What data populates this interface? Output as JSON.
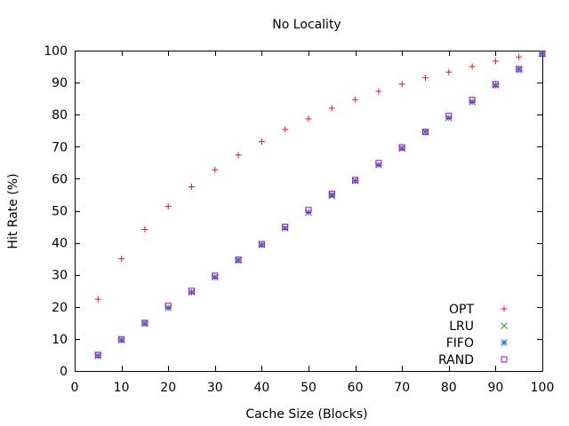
{
  "chart_data": {
    "type": "scatter",
    "title": "No Locality",
    "xlabel": "Cache Size (Blocks)",
    "ylabel": "Hit Rate (%)",
    "xlim": [
      0,
      100
    ],
    "ylim": [
      0,
      100
    ],
    "xticks": [
      0,
      10,
      20,
      30,
      40,
      50,
      60,
      70,
      80,
      90,
      100
    ],
    "yticks": [
      0,
      10,
      20,
      30,
      40,
      50,
      60,
      70,
      80,
      90,
      100
    ],
    "grid": false,
    "legend_position": "bottom-right",
    "x": [
      5,
      10,
      15,
      20,
      25,
      30,
      35,
      40,
      45,
      50,
      55,
      60,
      65,
      70,
      75,
      80,
      85,
      90,
      95,
      100
    ],
    "series": [
      {
        "name": "OPT",
        "marker": "plus",
        "color": "#e41a1c",
        "values": [
          22.4,
          35.0,
          44.2,
          51.4,
          57.5,
          62.8,
          67.4,
          71.6,
          75.4,
          78.7,
          82.0,
          84.7,
          87.3,
          89.5,
          91.5,
          93.3,
          95.0,
          96.7,
          98.0,
          99.0
        ]
      },
      {
        "name": "LRU",
        "marker": "cross",
        "color": "#2ca02c",
        "values": [
          4.8,
          9.7,
          14.9,
          19.7,
          24.6,
          29.3,
          34.6,
          39.4,
          44.6,
          49.5,
          54.6,
          59.4,
          64.3,
          69.5,
          74.6,
          79.0,
          84.0,
          89.2,
          94.2,
          99.0
        ]
      },
      {
        "name": "FIFO",
        "marker": "star",
        "color": "#1f77b4",
        "values": [
          4.8,
          9.7,
          14.9,
          19.7,
          24.6,
          29.3,
          34.6,
          39.4,
          44.6,
          49.5,
          55.0,
          59.4,
          64.3,
          69.5,
          74.6,
          79.0,
          84.0,
          89.2,
          94.2,
          99.0
        ]
      },
      {
        "name": "RAND",
        "marker": "square",
        "color": "#c000c0",
        "values": [
          5.0,
          9.9,
          15.0,
          20.4,
          25.0,
          29.7,
          34.7,
          39.6,
          45.0,
          50.2,
          55.3,
          59.6,
          64.9,
          69.8,
          74.6,
          79.6,
          84.6,
          89.5,
          94.2,
          99.0
        ]
      }
    ]
  }
}
